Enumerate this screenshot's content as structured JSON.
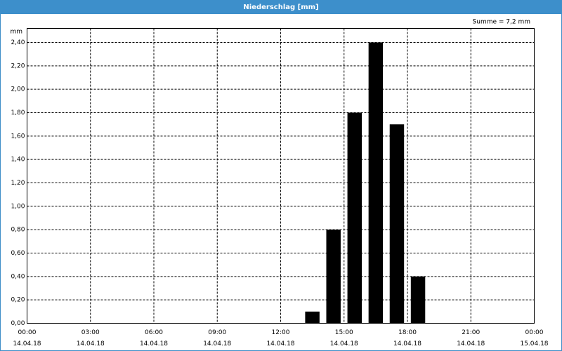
{
  "chart_data": {
    "type": "bar",
    "title": "Niederschlag [mm]",
    "y_unit": "mm",
    "annotation": "Summe = 7,2 mm",
    "x": [
      13.5,
      14.5,
      15.5,
      16.5,
      17.5,
      18.5
    ],
    "values": [
      0.1,
      0.8,
      1.8,
      2.4,
      1.7,
      0.4
    ],
    "color": "#000000",
    "xlim": [
      0,
      24
    ],
    "xticks": [
      {
        "value": 0,
        "label": "00:00",
        "date": "14.04.18"
      },
      {
        "value": 3,
        "label": "03:00",
        "date": "14.04.18"
      },
      {
        "value": 6,
        "label": "06:00",
        "date": "14.04.18"
      },
      {
        "value": 9,
        "label": "09:00",
        "date": "14.04.18"
      },
      {
        "value": 12,
        "label": "12:00",
        "date": "14.04.18"
      },
      {
        "value": 15,
        "label": "15:00",
        "date": "14.04.18"
      },
      {
        "value": 18,
        "label": "18:00",
        "date": "14.04.18"
      },
      {
        "value": 21,
        "label": "21:00",
        "date": "14.04.18"
      },
      {
        "value": 24,
        "label": "00:00",
        "date": "15.04.18"
      }
    ],
    "ylim": [
      0,
      2.52
    ],
    "yticks": [
      {
        "value": 0,
        "label": "0,00"
      },
      {
        "value": 0.2,
        "label": "0,20"
      },
      {
        "value": 0.4,
        "label": "0,40"
      },
      {
        "value": 0.6,
        "label": "0,60"
      },
      {
        "value": 0.8,
        "label": "0,80"
      },
      {
        "value": 1.0,
        "label": "1,00"
      },
      {
        "value": 1.2,
        "label": "1,20"
      },
      {
        "value": 1.4,
        "label": "1,40"
      },
      {
        "value": 1.6,
        "label": "1,60"
      },
      {
        "value": 1.8,
        "label": "1,80"
      },
      {
        "value": 2.0,
        "label": "2,00"
      },
      {
        "value": 2.2,
        "label": "2,20"
      },
      {
        "value": 2.4,
        "label": "2,40"
      }
    ],
    "grid": true
  }
}
